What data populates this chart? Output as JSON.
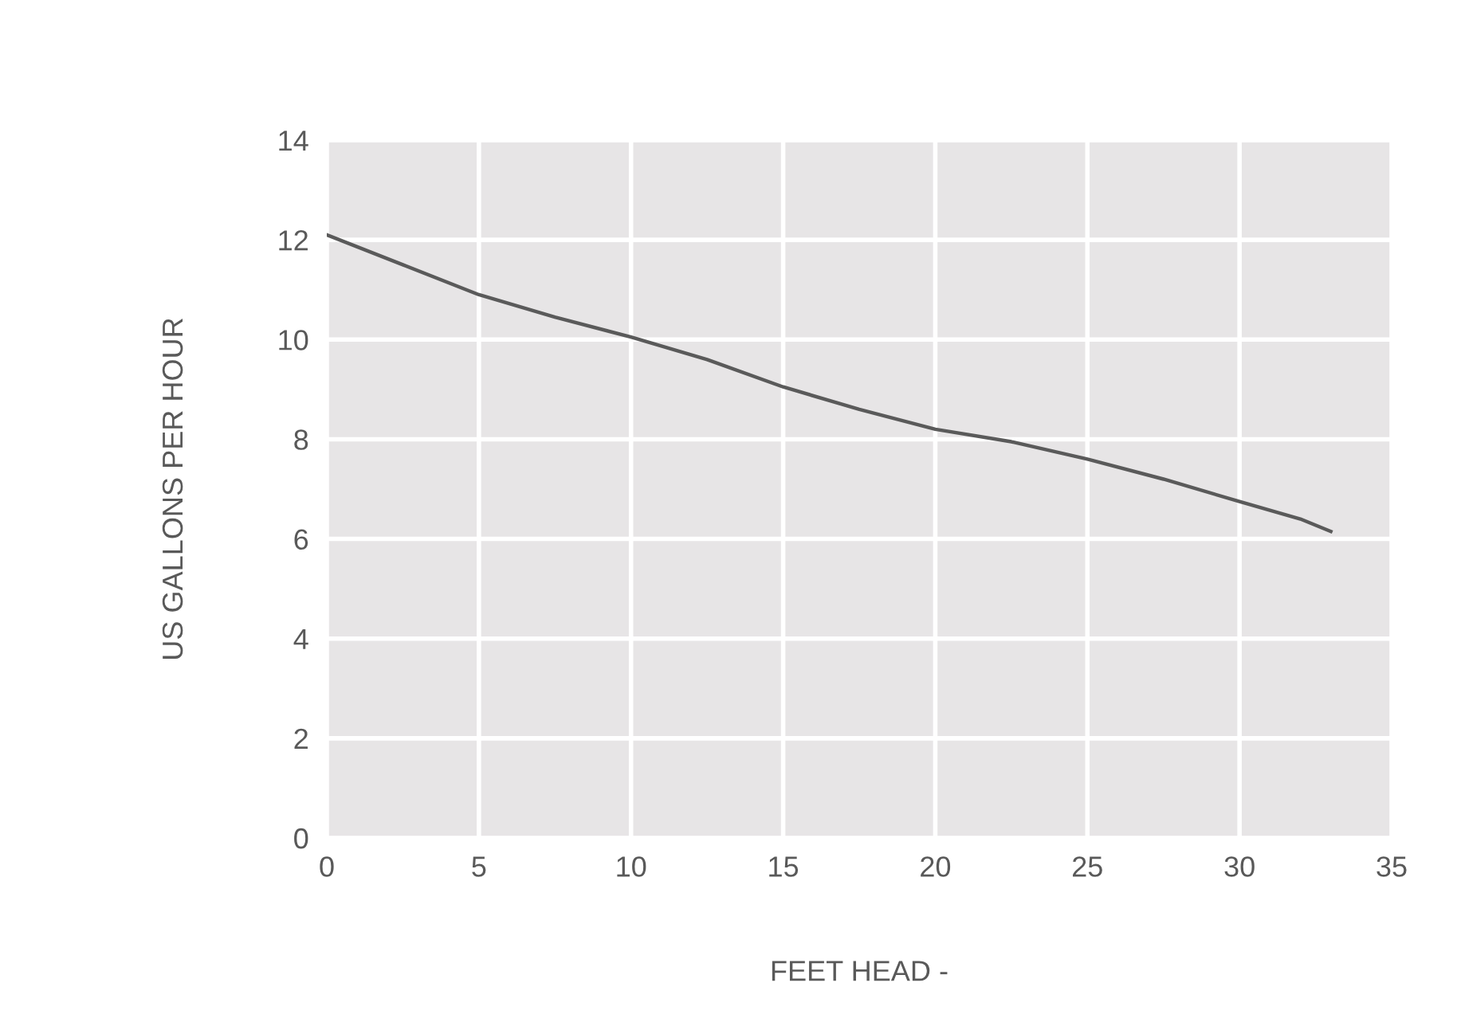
{
  "chart_data": {
    "type": "line",
    "xlabel": "FEET HEAD -",
    "ylabel": "US GALLONS PER HOUR",
    "x": [
      0,
      2.5,
      5,
      7.5,
      10,
      12.5,
      15,
      17.5,
      20,
      22.5,
      25,
      27.5,
      30,
      32,
      33
    ],
    "series": [
      {
        "color": "#5a5a5a",
        "values": [
          12.1,
          11.5,
          10.9,
          10.45,
          10.05,
          9.6,
          9.05,
          8.6,
          8.2,
          7.95,
          7.6,
          7.2,
          6.75,
          6.4,
          6.15
        ]
      }
    ],
    "xlim": [
      0,
      35
    ],
    "xticks": [
      0,
      5,
      10,
      15,
      20,
      25,
      30,
      35
    ],
    "ylim": [
      0,
      14
    ],
    "yticks": [
      0,
      2,
      4,
      6,
      8,
      10,
      12,
      14
    ],
    "grid": true,
    "marker": "none",
    "line_style": "solid"
  }
}
